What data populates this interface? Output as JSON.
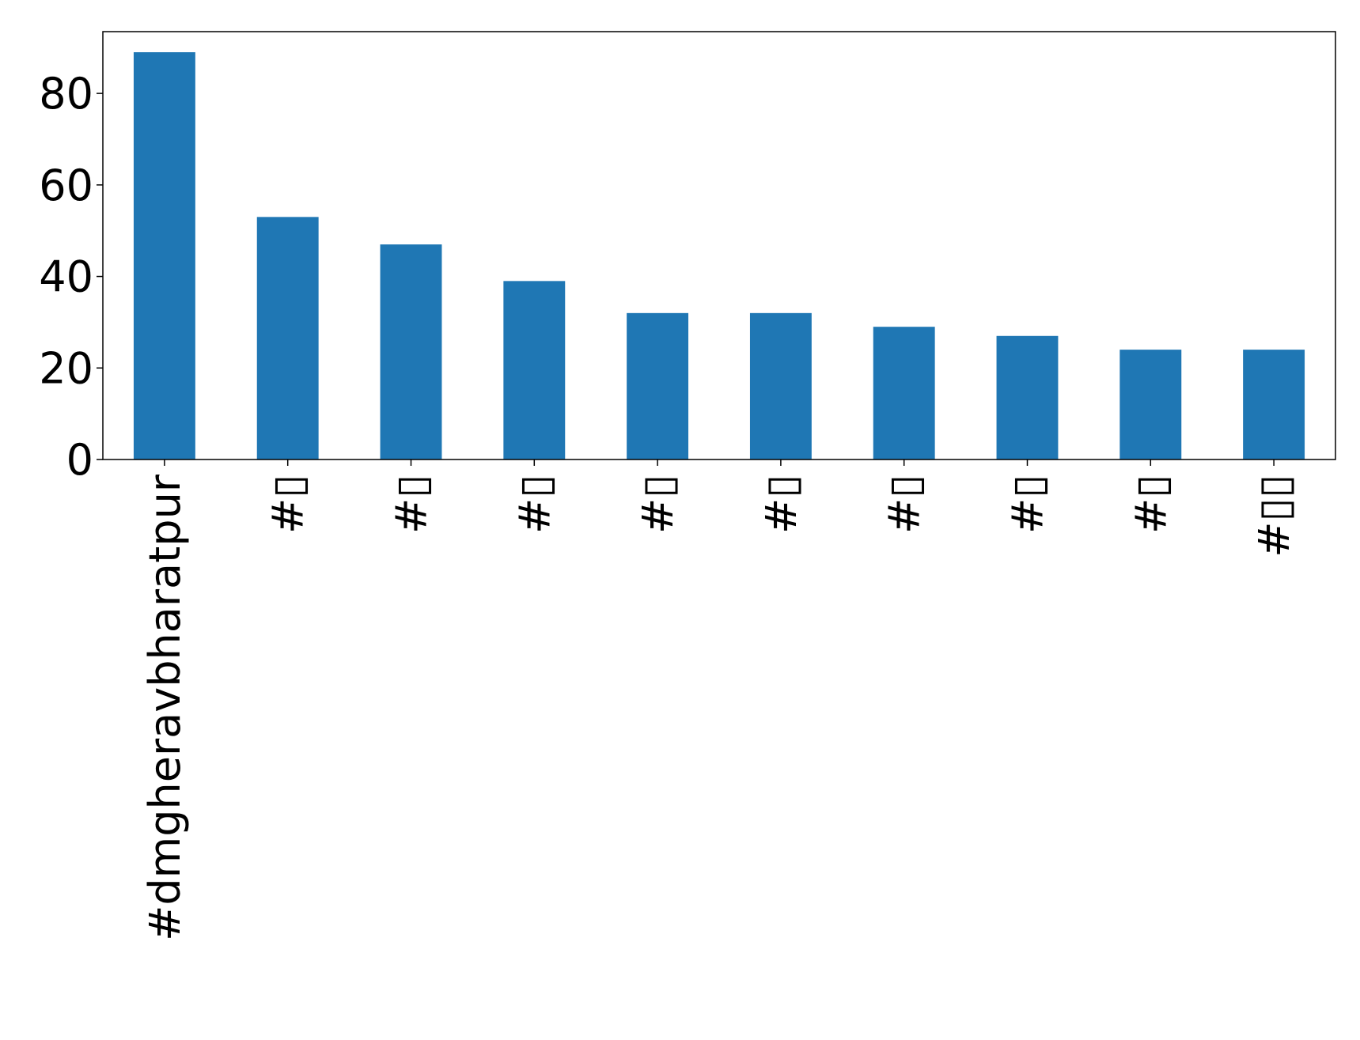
{
  "chart_data": {
    "type": "bar",
    "title": "",
    "xlabel": "",
    "ylabel": "",
    "categories": [
      "#dmgheravbharatpur",
      "#▯",
      "#▯",
      "#▯",
      "#▯",
      "#▯",
      "#▯",
      "#▯",
      "#▯",
      "#▯▯"
    ],
    "values": [
      89,
      53,
      47,
      39,
      32,
      32,
      29,
      27,
      24,
      24
    ],
    "ylim": [
      0,
      93.5
    ],
    "yticks": [
      0,
      20,
      40,
      60,
      80
    ],
    "ytick_labels": [
      "0",
      "20",
      "40",
      "60",
      "80"
    ],
    "grid": false,
    "legend": "none",
    "colors": {
      "bar": "#1f77b4",
      "axes": "#000000",
      "background": "#ffffff"
    }
  }
}
